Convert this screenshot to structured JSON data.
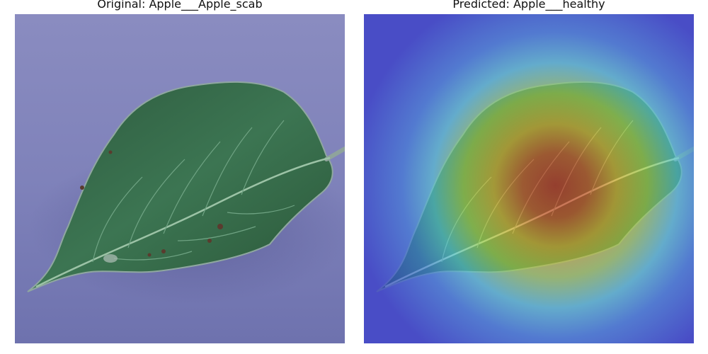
{
  "figure": {
    "panels": [
      {
        "title": "Original: Apple___Apple_scab",
        "image": "leaf-photo"
      },
      {
        "title": "Predicted: Apple___healthy",
        "image": "leaf-photo-gradcam-heatmap-overlay"
      }
    ]
  },
  "colors": {
    "background_surface": "#7b7eb6",
    "leaf_dark": "#2f5b3a",
    "leaf_mid": "#3f7350",
    "heatmap_low": "#2a2fd0",
    "heatmap_mid": "#56c4e0",
    "heatmap_high": "#cc2a22"
  }
}
